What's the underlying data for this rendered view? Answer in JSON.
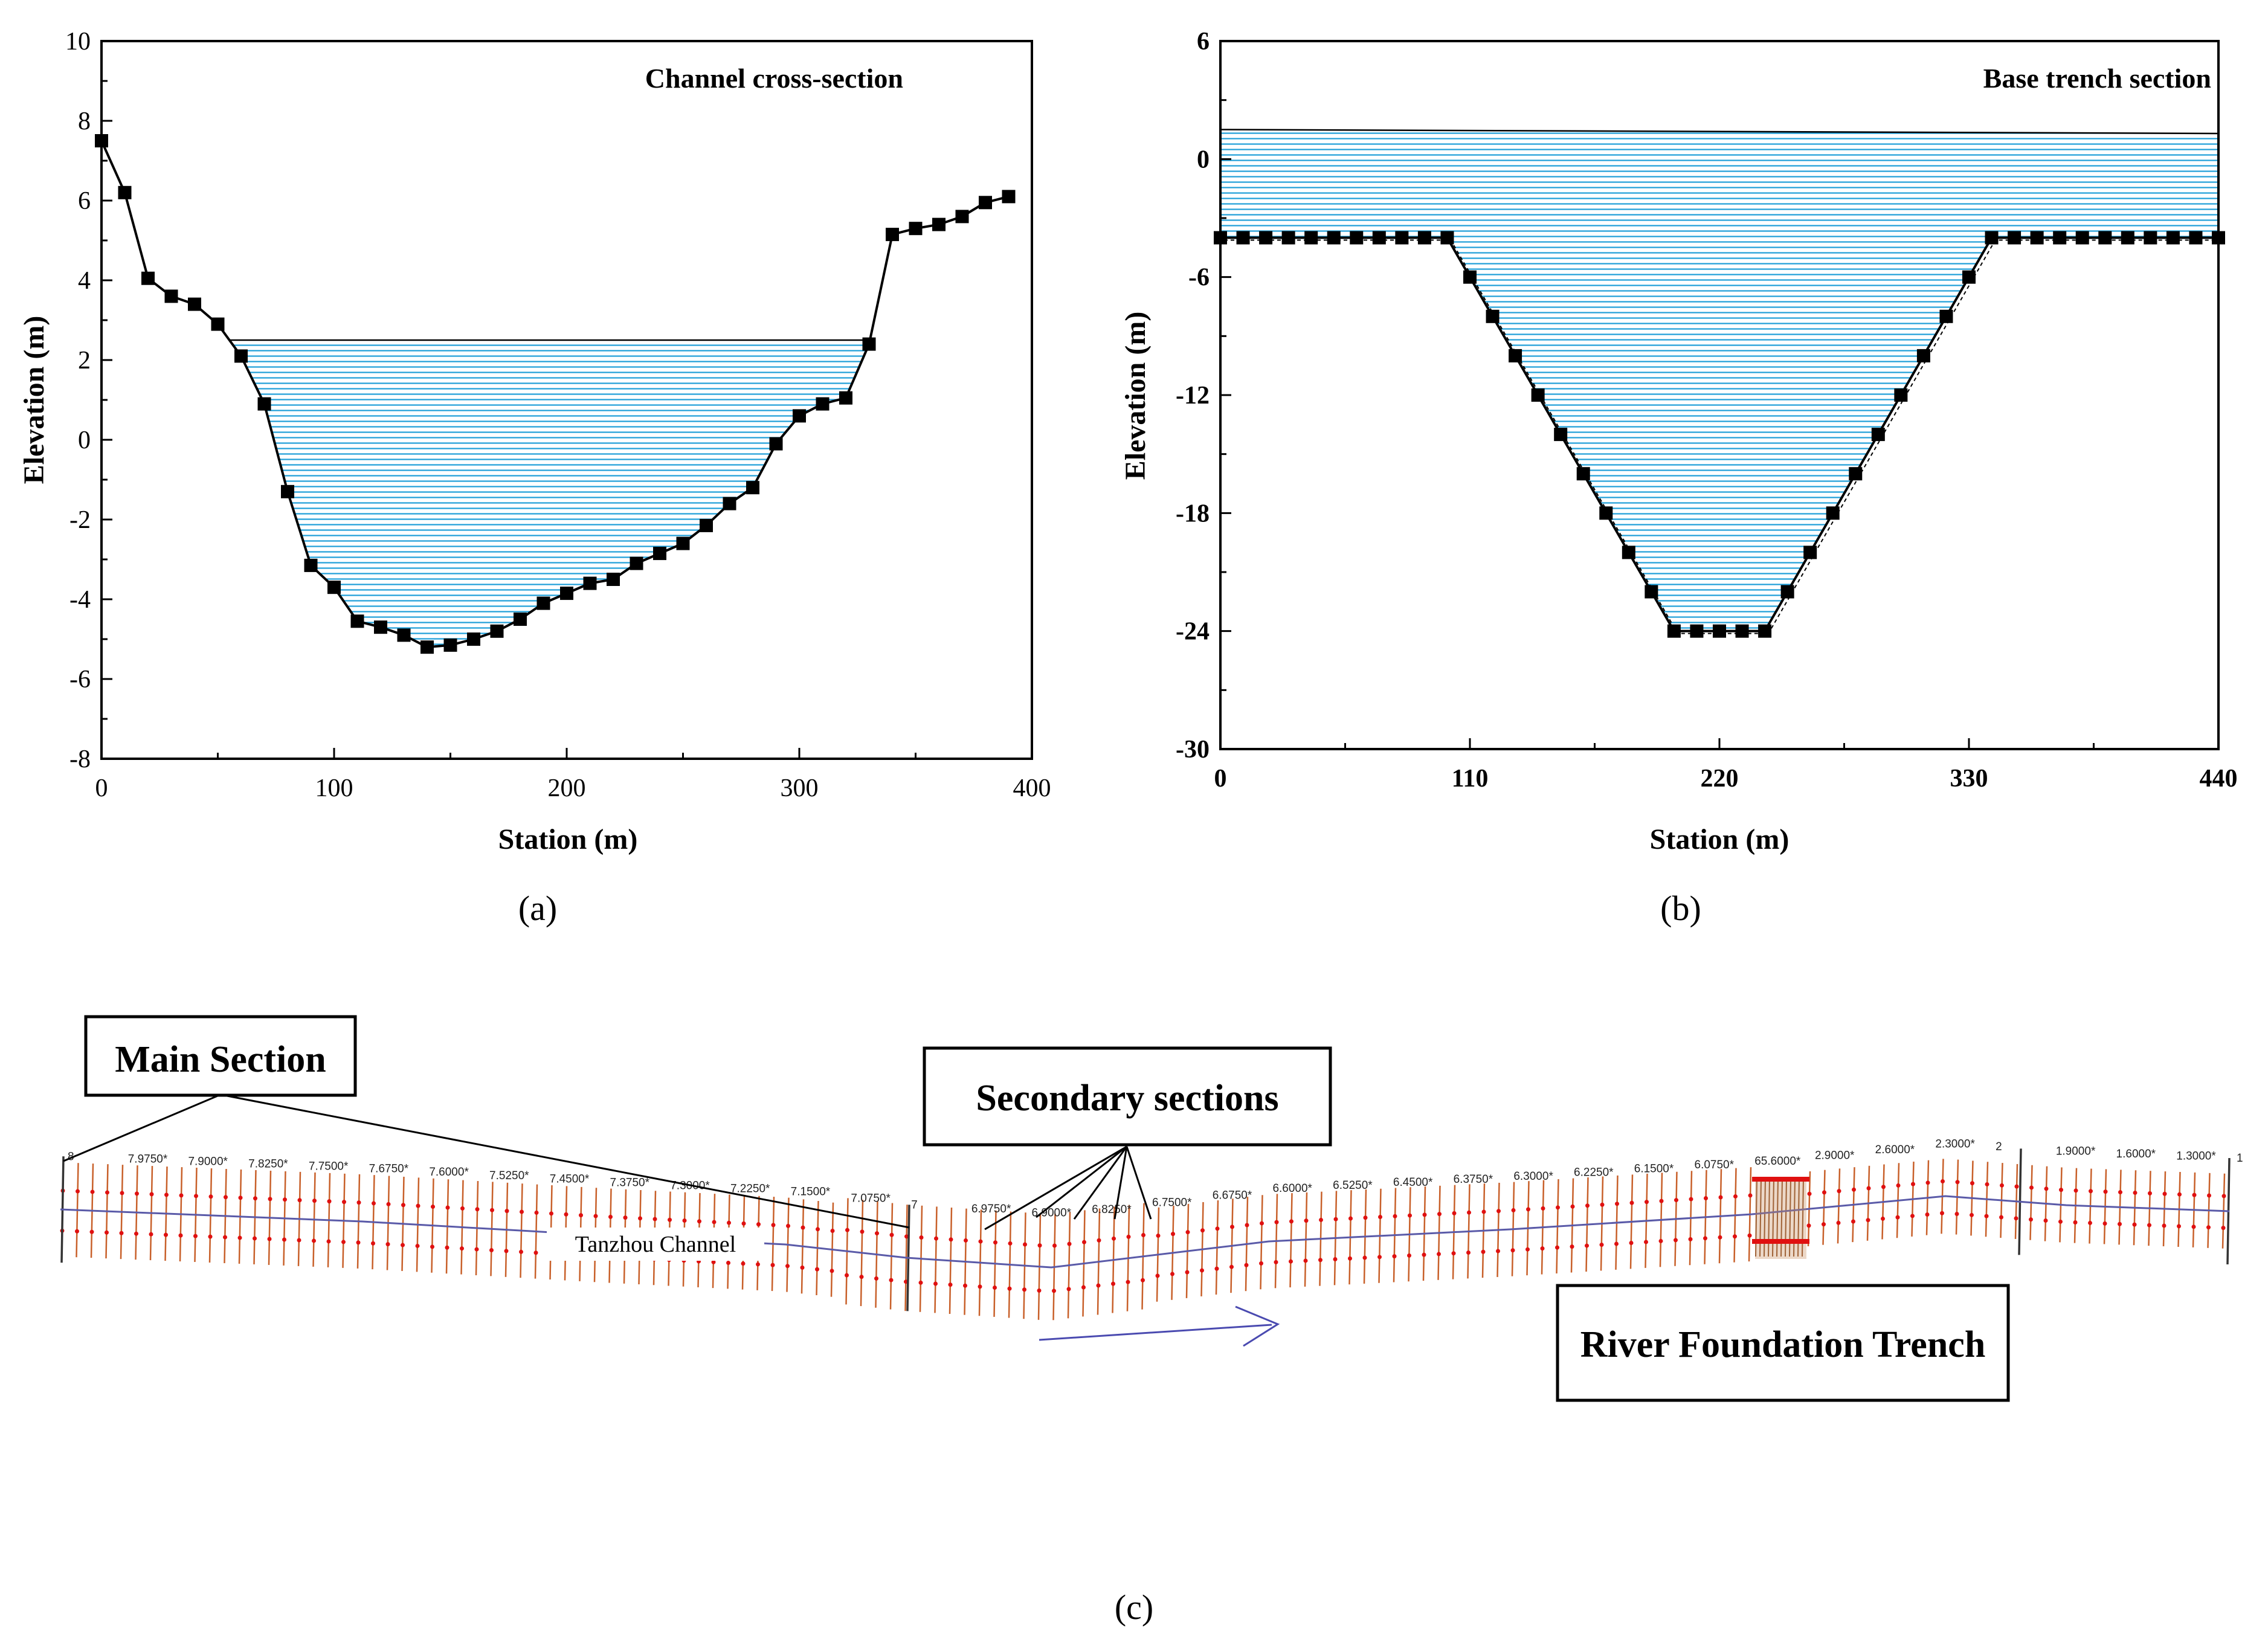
{
  "chart_data": [
    {
      "panel": "a",
      "type": "line",
      "title": "Channel cross-section",
      "xlabel": "Station (m)",
      "ylabel": "Elevation (m)",
      "xlim": [
        0,
        400
      ],
      "ylim": [
        -8,
        10
      ],
      "xticks": [
        0,
        100,
        200,
        300,
        400
      ],
      "yticks": [
        -8,
        -6,
        -4,
        -2,
        0,
        2,
        4,
        6,
        8,
        10
      ],
      "water_level": 2.5,
      "series": [
        {
          "name": "Bed profile",
          "x": [
            0,
            10,
            20,
            30,
            40,
            50,
            60,
            70,
            80,
            90,
            100,
            110,
            120,
            130,
            140,
            150,
            160,
            170,
            180,
            190,
            200,
            210,
            220,
            230,
            240,
            250,
            260,
            270,
            280,
            290,
            300,
            310,
            320,
            330,
            340,
            350,
            360,
            370,
            380,
            390
          ],
          "y": [
            7.5,
            6.2,
            4.05,
            3.6,
            3.4,
            2.9,
            2.1,
            0.9,
            -1.3,
            -3.15,
            -3.7,
            -4.55,
            -4.7,
            -4.9,
            -5.2,
            -5.15,
            -5.0,
            -4.8,
            -4.5,
            -4.1,
            -3.85,
            -3.6,
            -3.5,
            -3.1,
            -2.85,
            -2.6,
            -2.15,
            -1.6,
            -1.2,
            -0.1,
            0.6,
            0.9,
            1.05,
            2.4,
            5.15,
            5.3,
            5.4,
            5.6,
            5.95,
            6.1
          ]
        }
      ],
      "panel_label": "(a)"
    },
    {
      "panel": "b",
      "type": "line",
      "title": "Base trench section",
      "xlabel": "Station (m)",
      "ylabel": "Elevation (m)",
      "xlim": [
        0,
        440
      ],
      "ylim": [
        -30,
        6
      ],
      "xticks": [
        0,
        110,
        220,
        330,
        440
      ],
      "yticks": [
        -30,
        -24,
        -18,
        -12,
        -6,
        0,
        6
      ],
      "water_level_left": 1.5,
      "water_level_right": 1.3,
      "series": [
        {
          "name": "Trench profile",
          "x": [
            0,
            10,
            20,
            30,
            40,
            50,
            60,
            70,
            80,
            90,
            100,
            110,
            120,
            130,
            140,
            150,
            160,
            170,
            180,
            190,
            200,
            210,
            220,
            230,
            240,
            250,
            260,
            270,
            280,
            290,
            300,
            310,
            320,
            330,
            340,
            350,
            360,
            370,
            380,
            390,
            400,
            410,
            420,
            430,
            440
          ],
          "y": [
            -4,
            -4,
            -4,
            -4,
            -4,
            -4,
            -4,
            -4,
            -4,
            -4,
            -4,
            -6,
            -8,
            -10,
            -12,
            -14,
            -16,
            -18,
            -20,
            -22,
            -24,
            -24,
            -24,
            -24,
            -24,
            -22,
            -20,
            -18,
            -16,
            -14,
            -12,
            -10,
            -8,
            -6,
            -4,
            -4,
            -4,
            -4,
            -4,
            -4,
            -4,
            -4,
            -4,
            -4,
            -4
          ]
        }
      ],
      "panel_label": "(b)"
    },
    {
      "panel": "c",
      "type": "diagram",
      "callouts": [
        "Main Section",
        "Secondary sections",
        "River Foundation Trench"
      ],
      "channel_label": "Tanzhou Channel",
      "section_labels": [
        "8",
        "7.9750*",
        "7.9000*",
        "7.8250*",
        "7.7500*",
        "7.6750*",
        "7.6000*",
        "7.5250*",
        "7.4500*",
        "7.3750*",
        "7.3000*",
        "7.2250*",
        "7.1500*",
        "7.0750*",
        "7",
        "6.9750*",
        "6.9000*",
        "6.8250*",
        "6.7500*",
        "6.6750*",
        "6.6000*",
        "6.5250*",
        "6.4500*",
        "6.3750*",
        "6.3000*",
        "6.2250*",
        "6.1500*",
        "6.0750*",
        "65.6000*",
        "2.9000*",
        "2.6000*",
        "2.3000*",
        "2",
        "1.9000*",
        "1.6000*",
        "1.3000*",
        "1"
      ],
      "panel_label": "(c)"
    }
  ],
  "colors": {
    "water_line": "#1e9ed8",
    "profile": "#000000",
    "section_line": "#c8602a",
    "section_dot": "#e01010",
    "centerline": "#5a5aa8",
    "arrow": "#4a4ab0"
  }
}
